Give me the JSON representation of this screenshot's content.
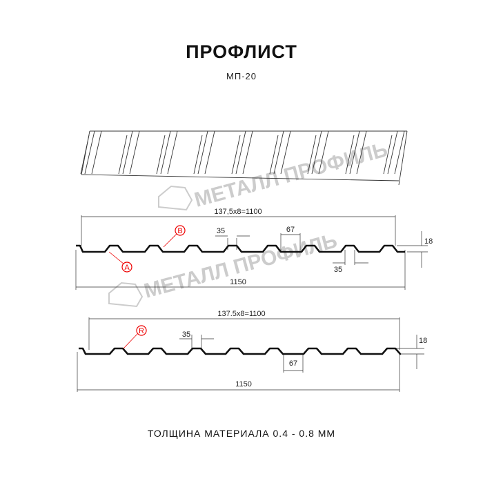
{
  "title": "ПРОФЛИСТ",
  "subtitle": "МП-20",
  "watermark": "МЕТАЛЛ ПРОФИЛЬ",
  "profile_a": {
    "pitch_label": "137,5x8=1100",
    "width_label": "1150",
    "crest_label": "35",
    "valley_label": "67",
    "bottom_label": "35",
    "height_label": "18",
    "marker_a": "A",
    "marker_b": "B"
  },
  "profile_r": {
    "pitch_label": "137.5x8=1100",
    "width_label": "1150",
    "crest_label": "35",
    "valley_label": "67",
    "height_label": "18",
    "marker_r": "R"
  },
  "footer": "ТОЛЩИНА МАТЕРИАЛА 0.4 - 0.8 ММ",
  "colors": {
    "line": "#111111",
    "marker": "#e00000",
    "watermark": "#cccccc"
  }
}
